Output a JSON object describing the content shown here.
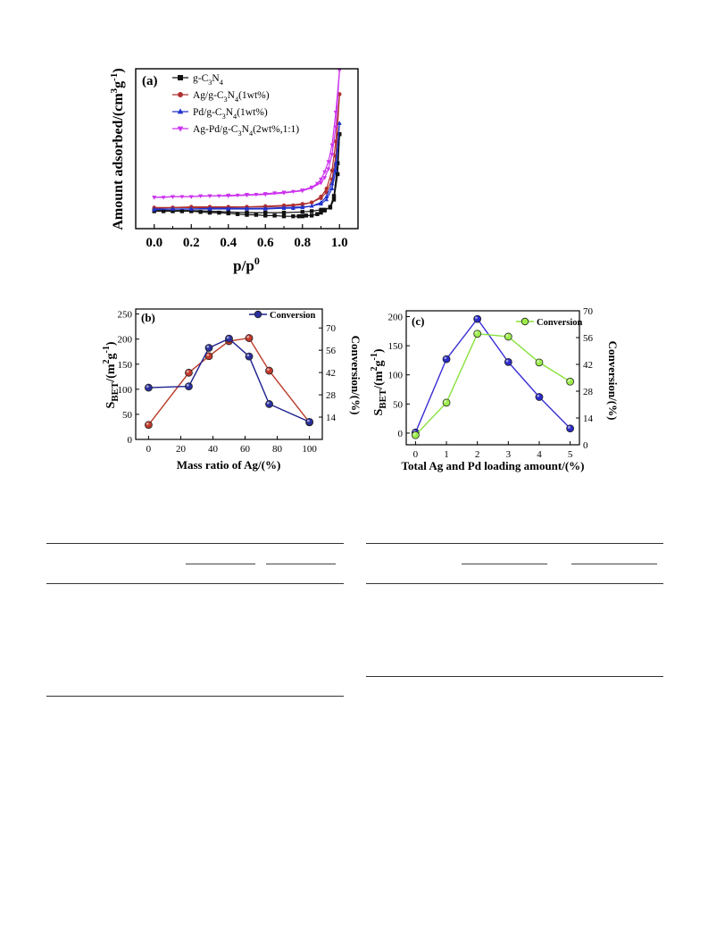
{
  "chart_data": [
    {
      "id": "a",
      "type": "line",
      "panel_label": "(a)",
      "xlabel": "p/p",
      "xlabel_sup": "0",
      "ylabel": "Amount adsorbed/(cm",
      "ylabel_sup1": "3",
      "ylabel_mid": "g",
      "ylabel_sup2": "-1",
      "ylabel_end": ")",
      "xlim": [
        -0.1,
        1.1
      ],
      "ylim": [
        0,
        220
      ],
      "yticks_shown": false,
      "xticks": [
        "0.0",
        "0.2",
        "0.4",
        "0.6",
        "0.8",
        "1.0"
      ],
      "legend_position": "top-left",
      "series": [
        {
          "name": "g-C3N4",
          "name_main": "g-C",
          "sub1": "3",
          "mid": "N",
          "sub2": "4",
          "tail": "",
          "color": "#111111",
          "marker": "square",
          "adsorption": [
            [
              0,
              24
            ],
            [
              0.05,
              24
            ],
            [
              0.1,
              24
            ],
            [
              0.15,
              24
            ],
            [
              0.2,
              24
            ],
            [
              0.25,
              23
            ],
            [
              0.3,
              22
            ],
            [
              0.35,
              22
            ],
            [
              0.4,
              21
            ],
            [
              0.45,
              20
            ],
            [
              0.5,
              19
            ],
            [
              0.55,
              19
            ],
            [
              0.6,
              18
            ],
            [
              0.65,
              18
            ],
            [
              0.7,
              17
            ],
            [
              0.75,
              17
            ],
            [
              0.78,
              17
            ],
            [
              0.8,
              17
            ],
            [
              0.82,
              18
            ],
            [
              0.85,
              18
            ],
            [
              0.88,
              20
            ],
            [
              0.9,
              22
            ],
            [
              0.92,
              25
            ],
            [
              0.95,
              30
            ],
            [
              0.97,
              45
            ],
            [
              0.99,
              90
            ],
            [
              1.0,
              130
            ]
          ],
          "desorption": [
            [
              1.0,
              130
            ],
            [
              0.99,
              75
            ],
            [
              0.97,
              40
            ],
            [
              0.95,
              29
            ],
            [
              0.92,
              26
            ],
            [
              0.9,
              26
            ],
            [
              0.85,
              24
            ],
            [
              0.8,
              23
            ],
            [
              0.7,
              22
            ],
            [
              0.6,
              22
            ],
            [
              0.5,
              22
            ],
            [
              0.4,
              23
            ],
            [
              0.3,
              24
            ],
            [
              0.2,
              25
            ],
            [
              0.1,
              25
            ],
            [
              0,
              25
            ]
          ]
        },
        {
          "name": "Ag/g-C3N4(1wt%)",
          "name_main": "Ag/g-C",
          "sub1": "3",
          "mid": "N",
          "sub2": "4",
          "tail": "(1wt%)",
          "color": "#b03030",
          "marker": "circle",
          "adsorption": [
            [
              0,
              28
            ],
            [
              0.1,
              29
            ],
            [
              0.2,
              29
            ],
            [
              0.3,
              29
            ],
            [
              0.4,
              29
            ],
            [
              0.5,
              30
            ],
            [
              0.6,
              30
            ],
            [
              0.7,
              31
            ],
            [
              0.75,
              32
            ],
            [
              0.8,
              33
            ],
            [
              0.85,
              36
            ],
            [
              0.9,
              44
            ],
            [
              0.93,
              55
            ],
            [
              0.96,
              80
            ],
            [
              0.98,
              120
            ],
            [
              1.0,
              185
            ]
          ],
          "desorption": [
            [
              1.0,
              185
            ],
            [
              0.98,
              100
            ],
            [
              0.96,
              68
            ],
            [
              0.93,
              50
            ],
            [
              0.9,
              42
            ],
            [
              0.85,
              36
            ],
            [
              0.8,
              34
            ],
            [
              0.7,
              32
            ],
            [
              0.6,
              31
            ],
            [
              0.5,
              30
            ],
            [
              0.4,
              30
            ],
            [
              0.3,
              30
            ],
            [
              0.2,
              30
            ],
            [
              0.1,
              29
            ],
            [
              0,
              29
            ]
          ]
        },
        {
          "name": "Pd/g-C3N4(1wt%)",
          "name_main": "Pd/g-C",
          "sub1": "3",
          "mid": "N",
          "sub2": "4",
          "tail": "(1wt%)",
          "color": "#2233cc",
          "marker": "triangle-up",
          "adsorption": [
            [
              0,
              26
            ],
            [
              0.1,
              27
            ],
            [
              0.2,
              27
            ],
            [
              0.3,
              27
            ],
            [
              0.4,
              27
            ],
            [
              0.5,
              27
            ],
            [
              0.6,
              27
            ],
            [
              0.7,
              28
            ],
            [
              0.75,
              28
            ],
            [
              0.8,
              29
            ],
            [
              0.85,
              31
            ],
            [
              0.9,
              36
            ],
            [
              0.93,
              44
            ],
            [
              0.96,
              62
            ],
            [
              0.98,
              90
            ],
            [
              1.0,
              145
            ]
          ],
          "desorption": [
            [
              1.0,
              145
            ],
            [
              0.98,
              80
            ],
            [
              0.96,
              55
            ],
            [
              0.93,
              40
            ],
            [
              0.9,
              34
            ],
            [
              0.85,
              31
            ],
            [
              0.8,
              30
            ],
            [
              0.7,
              29
            ],
            [
              0.6,
              28
            ],
            [
              0.5,
              28
            ],
            [
              0.4,
              28
            ],
            [
              0.3,
              28
            ],
            [
              0.2,
              27
            ],
            [
              0.1,
              27
            ],
            [
              0,
              27
            ]
          ]
        },
        {
          "name": "Ag-Pd/g-C3N4(2wt%,1:1)",
          "name_main": "Ag-Pd/g-C",
          "sub1": "3",
          "mid": "N",
          "sub2": "4",
          "tail": "(2wt%,1:1)",
          "color": "#cc33ee",
          "marker": "triangle-down",
          "adsorption": [
            [
              0,
              43
            ],
            [
              0.05,
              43
            ],
            [
              0.1,
              44
            ],
            [
              0.15,
              44
            ],
            [
              0.2,
              44
            ],
            [
              0.25,
              45
            ],
            [
              0.3,
              45
            ],
            [
              0.35,
              45
            ],
            [
              0.4,
              46
            ],
            [
              0.45,
              46
            ],
            [
              0.5,
              47
            ],
            [
              0.55,
              47
            ],
            [
              0.6,
              48
            ],
            [
              0.65,
              49
            ],
            [
              0.7,
              50
            ],
            [
              0.75,
              51
            ],
            [
              0.8,
              53
            ],
            [
              0.85,
              57
            ],
            [
              0.88,
              62
            ],
            [
              0.9,
              68
            ],
            [
              0.92,
              78
            ],
            [
              0.94,
              92
            ],
            [
              0.96,
              115
            ],
            [
              0.98,
              160
            ],
            [
              1.0,
              218
            ]
          ],
          "desorption": [
            [
              1.0,
              218
            ],
            [
              0.98,
              140
            ],
            [
              0.96,
              102
            ],
            [
              0.94,
              82
            ],
            [
              0.92,
              70
            ],
            [
              0.9,
              63
            ],
            [
              0.85,
              56
            ],
            [
              0.8,
              52
            ],
            [
              0.7,
              49
            ],
            [
              0.6,
              47
            ],
            [
              0.5,
              46
            ],
            [
              0.4,
              45
            ],
            [
              0.3,
              45
            ],
            [
              0.2,
              44
            ],
            [
              0.1,
              44
            ],
            [
              0,
              43
            ]
          ]
        }
      ]
    },
    {
      "id": "b",
      "type": "line",
      "panel_label": "(b)",
      "xlabel": "Mass ratio of Ag/(%)",
      "ylabel_main": "S",
      "ylabel_sub": "BET",
      "ylabel_rest": "/(m",
      "ylabel_sup1": "2",
      "ylabel_mid": "g",
      "ylabel_sup2": "-1",
      "ylabel_end": ")",
      "y2label": "Conversion/(%)",
      "xlim": [
        -8,
        108
      ],
      "ylim": [
        0,
        260
      ],
      "y2lim": [
        0,
        81.9
      ],
      "xticks": [
        0,
        20,
        40,
        60,
        80,
        100
      ],
      "yticks": [
        0,
        50,
        100,
        150,
        200,
        250
      ],
      "y2ticks": [
        14,
        28,
        42,
        56,
        70
      ],
      "legend": "Conversion",
      "legend_position": "top-right",
      "series": [
        {
          "name": "",
          "axis": "left",
          "color": "#bb3b2a",
          "marker_fill": "#c0392b",
          "x": [
            0,
            25,
            37.5,
            50,
            62.5,
            75,
            100
          ],
          "y": [
            29,
            133,
            166,
            196,
            202,
            137,
            34
          ]
        },
        {
          "name": "Conversion",
          "axis": "right",
          "color": "#1c1f8c",
          "marker_fill": "#2a2f9c",
          "x": [
            0,
            25,
            37.5,
            50,
            62.5,
            75,
            100
          ],
          "y": [
            32.5,
            33.3,
            57.5,
            63.3,
            52.1,
            22.2,
            11
          ]
        }
      ]
    },
    {
      "id": "c",
      "type": "line",
      "panel_label": "(c)",
      "xlabel": "Total Ag and Pd loading amount/(%)",
      "ylabel_main": "S",
      "ylabel_sub": "BET",
      "ylabel_rest": "/(m",
      "ylabel_sup1": "2",
      "ylabel_mid": "g",
      "ylabel_sup2": "-1",
      "ylabel_end": ")",
      "y2label": "Conversion/(%)",
      "xlim": [
        -0.3,
        5.3
      ],
      "ylim": [
        -20,
        210
      ],
      "y2lim": [
        0,
        70
      ],
      "xticks": [
        0,
        1,
        2,
        3,
        4,
        5
      ],
      "yticks": [
        0,
        50,
        100,
        150,
        200
      ],
      "y2ticks": [
        0,
        14,
        28,
        42,
        56,
        70
      ],
      "legend": "Conversion",
      "legend_position": "top-right",
      "series": [
        {
          "name": "",
          "axis": "left",
          "color": "#3a2fd6",
          "marker_fill": "#2a2ac8",
          "x": [
            0,
            1,
            2,
            3,
            4,
            5
          ],
          "y": [
            1,
            127,
            196,
            122,
            62,
            8
          ]
        },
        {
          "name": "Conversion",
          "axis": "right",
          "color": "#88e23a",
          "marker_fill": "#9cec4a",
          "x": [
            0,
            1,
            2,
            3,
            4,
            5
          ],
          "y": [
            5,
            22,
            58,
            56.5,
            43,
            33
          ]
        }
      ]
    }
  ],
  "tables": {
    "left": {
      "rows": [],
      "columns": []
    },
    "right": {
      "rows": [],
      "columns": []
    }
  }
}
